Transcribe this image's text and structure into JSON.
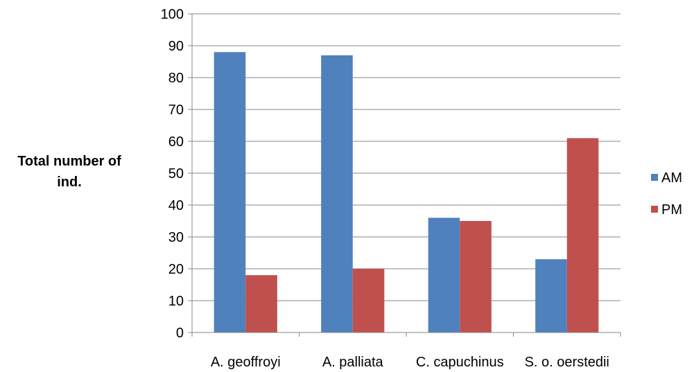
{
  "chart_data": {
    "type": "bar",
    "categories": [
      "A. geoffroyi",
      "A. palliata",
      "C. capuchinus",
      "S. o. oerstedii"
    ],
    "series": [
      {
        "name": "AM",
        "color": "#4F81BD",
        "values": [
          88,
          87,
          36,
          23
        ]
      },
      {
        "name": "PM",
        "color": "#C0504D",
        "values": [
          18,
          20,
          35,
          61
        ]
      }
    ],
    "title": "",
    "xlabel": "",
    "ylabel_lines": [
      "Total number of",
      "ind."
    ],
    "ylim": [
      0,
      100
    ],
    "yticks": [
      0,
      10,
      20,
      30,
      40,
      50,
      60,
      70,
      80,
      90,
      100
    ],
    "grid": true,
    "legend": "right"
  }
}
